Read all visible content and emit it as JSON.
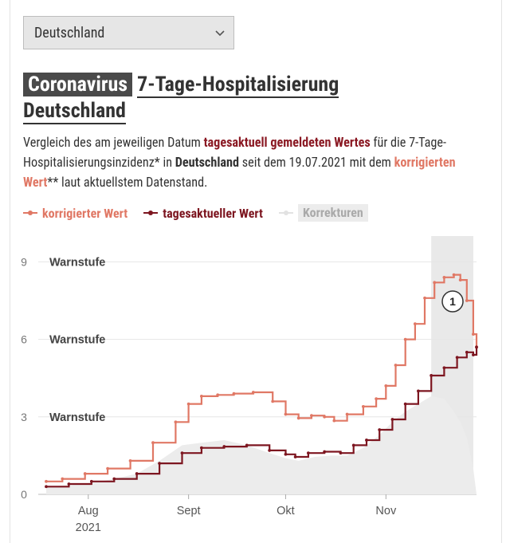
{
  "dropdown": {
    "selected": "Deutschland"
  },
  "title": {
    "tag": "Coronavirus",
    "main": "7-Tage-Hospitalisierung",
    "region": "Deutschland"
  },
  "description": {
    "p1": "Vergleich des am jeweiligen Datum ",
    "em1": "tagesaktuell gemeldeten Wertes",
    "p2": " für die 7-Tage-Hospitalisierungsinzidenz* in ",
    "region": "Deutschland",
    "p3": " seit dem 19.07.2021 mit dem ",
    "em2": "korrigierten Wert",
    "p4": "** laut aktuellstem Datenstand."
  },
  "legend": {
    "corrected": "korrigierter Wert",
    "daily": "tagesaktueller Wert",
    "corrections": "Korrekturen"
  },
  "colors": {
    "corrected": "#e07865",
    "daily": "#7d1620",
    "area": "#ececec",
    "shade": "#e9e9e9"
  },
  "annotation": "1",
  "chart_data": {
    "type": "line",
    "title": "7-Tage-Hospitalisierung Deutschland",
    "x_start": "2021-07-19",
    "x_end": "2021-11-29",
    "x_ticks": [
      {
        "date": "2021-08-01",
        "label": "Aug",
        "sub": "2021"
      },
      {
        "date": "2021-09-01",
        "label": "Sept",
        "sub": ""
      },
      {
        "date": "2021-10-01",
        "label": "Okt",
        "sub": ""
      },
      {
        "date": "2021-11-01",
        "label": "Nov",
        "sub": ""
      }
    ],
    "y_ticks": [
      0,
      3,
      6,
      9
    ],
    "ylim": [
      0,
      9.9
    ],
    "thresholds": [
      {
        "value": 3,
        "label": "Warnstufe"
      },
      {
        "value": 6,
        "label": "Warnstufe"
      },
      {
        "value": 9,
        "label": "Warnstufe"
      }
    ],
    "shaded_region": {
      "from": "2021-11-15",
      "to": "2021-11-28"
    },
    "series": [
      {
        "name": "korrigierter Wert",
        "points": [
          [
            "2021-07-19",
            0.5
          ],
          [
            "2021-07-24",
            0.6
          ],
          [
            "2021-07-31",
            0.8
          ],
          [
            "2021-08-07",
            1.0
          ],
          [
            "2021-08-14",
            1.3
          ],
          [
            "2021-08-21",
            2.0
          ],
          [
            "2021-08-28",
            2.8
          ],
          [
            "2021-09-01",
            3.5
          ],
          [
            "2021-09-05",
            3.8
          ],
          [
            "2021-09-10",
            3.85
          ],
          [
            "2021-09-15",
            3.9
          ],
          [
            "2021-09-21",
            3.95
          ],
          [
            "2021-09-27",
            3.6
          ],
          [
            "2021-10-01",
            3.1
          ],
          [
            "2021-10-05",
            2.95
          ],
          [
            "2021-10-09",
            3.05
          ],
          [
            "2021-10-13",
            3.0
          ],
          [
            "2021-10-16",
            2.85
          ],
          [
            "2021-10-20",
            3.1
          ],
          [
            "2021-10-25",
            3.4
          ],
          [
            "2021-10-29",
            3.7
          ],
          [
            "2021-11-01",
            4.2
          ],
          [
            "2021-11-04",
            5.0
          ],
          [
            "2021-11-07",
            6.0
          ],
          [
            "2021-11-10",
            6.6
          ],
          [
            "2021-11-13",
            7.6
          ],
          [
            "2021-11-16",
            8.2
          ],
          [
            "2021-11-19",
            8.4
          ],
          [
            "2021-11-22",
            8.5
          ],
          [
            "2021-11-24",
            8.3
          ],
          [
            "2021-11-26",
            7.5
          ],
          [
            "2021-11-28",
            6.2
          ],
          [
            "2021-11-29",
            5.7
          ]
        ]
      },
      {
        "name": "tagesaktueller Wert",
        "points": [
          [
            "2021-07-19",
            0.3
          ],
          [
            "2021-07-26",
            0.4
          ],
          [
            "2021-08-02",
            0.5
          ],
          [
            "2021-08-09",
            0.6
          ],
          [
            "2021-08-16",
            0.8
          ],
          [
            "2021-08-23",
            1.2
          ],
          [
            "2021-08-30",
            1.6
          ],
          [
            "2021-09-05",
            1.8
          ],
          [
            "2021-09-12",
            1.85
          ],
          [
            "2021-09-19",
            1.9
          ],
          [
            "2021-09-26",
            1.7
          ],
          [
            "2021-10-01",
            1.55
          ],
          [
            "2021-10-04",
            1.45
          ],
          [
            "2021-10-08",
            1.6
          ],
          [
            "2021-10-13",
            1.65
          ],
          [
            "2021-10-18",
            1.6
          ],
          [
            "2021-10-22",
            1.9
          ],
          [
            "2021-10-26",
            2.1
          ],
          [
            "2021-10-30",
            2.5
          ],
          [
            "2021-11-03",
            2.9
          ],
          [
            "2021-11-07",
            3.5
          ],
          [
            "2021-11-11",
            4.0
          ],
          [
            "2021-11-15",
            4.6
          ],
          [
            "2021-11-19",
            4.9
          ],
          [
            "2021-11-23",
            5.3
          ],
          [
            "2021-11-26",
            5.5
          ],
          [
            "2021-11-28",
            5.4
          ],
          [
            "2021-11-29",
            5.7
          ]
        ]
      },
      {
        "name": "Korrekturen",
        "points": [
          [
            "2021-07-19",
            0.3
          ],
          [
            "2021-07-26",
            0.35
          ],
          [
            "2021-08-02",
            0.45
          ],
          [
            "2021-08-09",
            0.6
          ],
          [
            "2021-08-16",
            0.8
          ],
          [
            "2021-08-23",
            1.3
          ],
          [
            "2021-08-30",
            1.9
          ],
          [
            "2021-09-05",
            2.0
          ],
          [
            "2021-09-12",
            2.1
          ],
          [
            "2021-09-19",
            1.9
          ],
          [
            "2021-09-26",
            1.6
          ],
          [
            "2021-10-01",
            1.4
          ],
          [
            "2021-10-05",
            1.3
          ],
          [
            "2021-10-10",
            1.45
          ],
          [
            "2021-10-15",
            1.5
          ],
          [
            "2021-10-20",
            1.5
          ],
          [
            "2021-10-25",
            1.8
          ],
          [
            "2021-10-30",
            2.3
          ],
          [
            "2021-11-03",
            2.8
          ],
          [
            "2021-11-07",
            3.2
          ],
          [
            "2021-11-11",
            3.5
          ],
          [
            "2021-11-15",
            3.8
          ],
          [
            "2021-11-19",
            3.7
          ],
          [
            "2021-11-22",
            3.2
          ],
          [
            "2021-11-24",
            2.8
          ],
          [
            "2021-11-26",
            2.2
          ],
          [
            "2021-11-27",
            1.6
          ],
          [
            "2021-11-28",
            1.0
          ],
          [
            "2021-11-29",
            0
          ]
        ]
      }
    ]
  }
}
